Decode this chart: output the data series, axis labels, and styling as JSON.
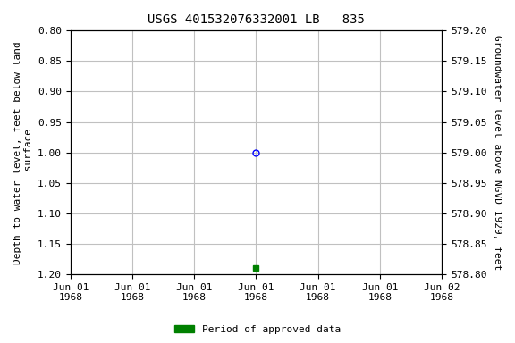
{
  "title": "USGS 401532076332001 LB   835",
  "ylabel_left": "Depth to water level, feet below land\n surface",
  "ylabel_right": "Groundwater level above NGVD 1929, feet",
  "ylim_left": [
    0.8,
    1.2
  ],
  "ylim_right": [
    578.8,
    579.2
  ],
  "left_yticks": [
    0.8,
    0.85,
    0.9,
    0.95,
    1.0,
    1.05,
    1.1,
    1.15,
    1.2
  ],
  "right_yticks": [
    579.2,
    579.15,
    579.1,
    579.05,
    579.0,
    578.95,
    578.9,
    578.85,
    578.8
  ],
  "point_open": {
    "x": 3.0,
    "value": 1.0,
    "color": "blue",
    "marker": "o"
  },
  "point_filled": {
    "x": 3.0,
    "value": 1.19,
    "color": "green",
    "marker": "s"
  },
  "xlim": [
    0,
    6
  ],
  "num_xticks": 7,
  "xtick_positions": [
    0,
    1,
    2,
    3,
    4,
    5,
    6
  ],
  "xtick_labels": [
    "Jun 01\n1968",
    "Jun 01\n1968",
    "Jun 01\n1968",
    "Jun 01\n1968",
    "Jun 01\n1968",
    "Jun 01\n1968",
    "Jun 02\n1968"
  ],
  "legend_label": "Period of approved data",
  "legend_color": "#008000",
  "background_color": "#ffffff",
  "grid_color": "#c0c0c0",
  "title_fontsize": 10,
  "axis_label_fontsize": 8,
  "tick_fontsize": 8
}
